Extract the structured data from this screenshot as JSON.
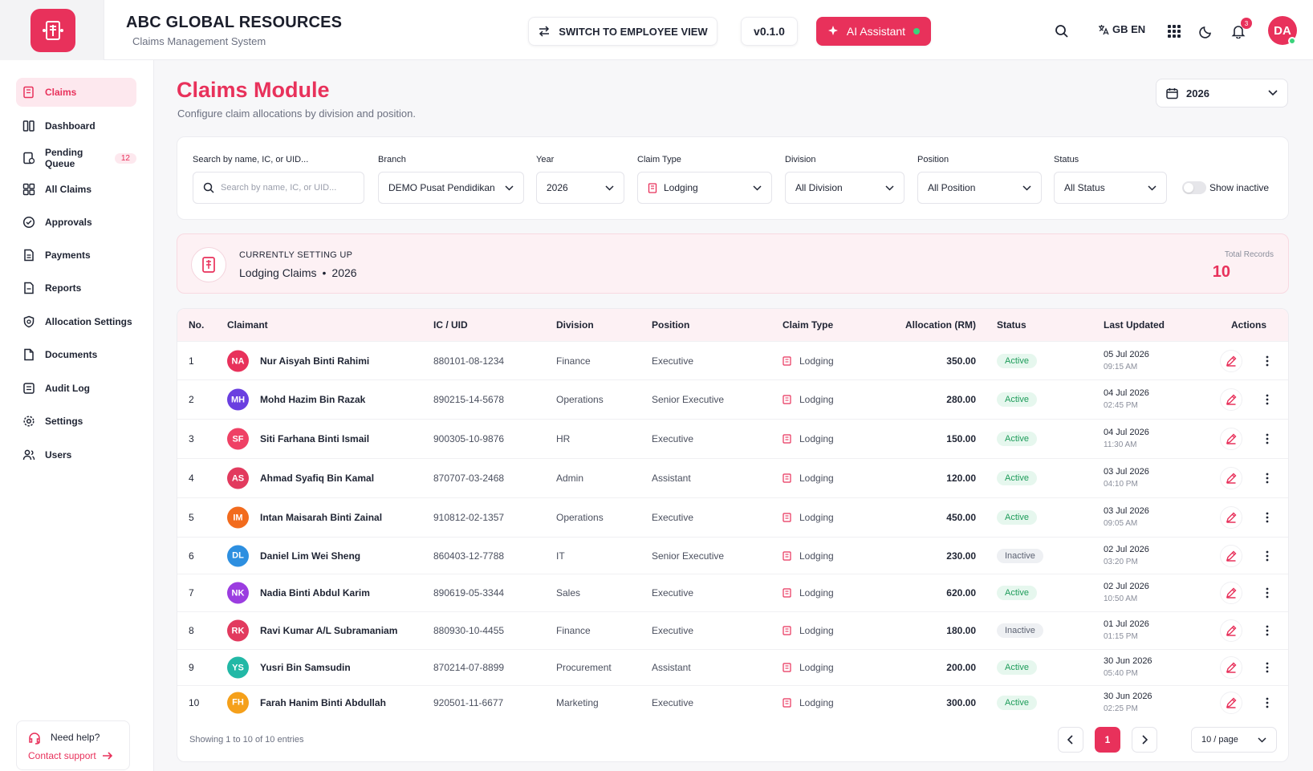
{
  "header": {
    "brand_title": "ABC GLOBAL RESOURCES",
    "brand_subtitle": "Claims Management System",
    "switch_label": "SWITCH TO EMPLOYEE VIEW",
    "version": "v0.1.0",
    "ai_label": "AI Assistant",
    "language": "GB EN",
    "notification_count": "3",
    "user_initials": "DA",
    "colors": {
      "accent": "#e8315b",
      "online": "#3ad37b"
    }
  },
  "sidebar": {
    "items": [
      {
        "label": "Claims",
        "icon": "claims-icon",
        "active": true
      },
      {
        "label": "Dashboard",
        "icon": "dashboard-icon"
      },
      {
        "label": "Pending Queue",
        "icon": "pending-icon",
        "badge": "12"
      },
      {
        "label": "All Claims",
        "icon": "all-claims-icon"
      },
      {
        "label": "Approvals",
        "icon": "check-circle-icon"
      },
      {
        "label": "Payments",
        "icon": "document-icon"
      },
      {
        "label": "Reports",
        "icon": "report-icon"
      },
      {
        "label": "Allocation Settings",
        "icon": "gear-shield-icon"
      },
      {
        "label": "Documents",
        "icon": "file-icon"
      },
      {
        "label": "Audit Log",
        "icon": "audit-icon"
      },
      {
        "label": "Settings",
        "icon": "gear-icon"
      },
      {
        "label": "Users",
        "icon": "users-icon"
      }
    ],
    "help_title": "Need help?",
    "help_link": "Contact support"
  },
  "page": {
    "title": "Claims Module",
    "subtitle": "Configure claim allocations by division and position.",
    "year": "2026"
  },
  "filters": {
    "search_label": "Search by name, IC, or UID...",
    "search_placeholder": "Search by name, IC, or UID...",
    "branch_label": "Branch",
    "branch_value": "DEMO Pusat Pendidikan",
    "year_label": "Year",
    "year_value": "2026",
    "claim_type_label": "Claim Type",
    "claim_type_value": "Lodging",
    "division_label": "Division",
    "division_value": "All Division",
    "position_label": "Position",
    "position_value": "All Position",
    "status_label": "Status",
    "status_value": "All Status",
    "show_inactive_label": "Show inactive",
    "show_inactive": false
  },
  "setup": {
    "kicker": "CURRENTLY SETTING UP",
    "claim_name": "Lodging Claims",
    "separator": "•",
    "year": "2026",
    "total_label": "Total Records",
    "total_value": "10"
  },
  "table": {
    "headers": [
      "No.",
      "Claimant",
      "IC / UID",
      "Division",
      "Position",
      "Claim Type",
      "Allocation (RM)",
      "Status",
      "Last Updated",
      "Actions"
    ],
    "rows": [
      {
        "no": "1",
        "initials": "NA",
        "color": "#e8315b",
        "name": "Nur Aisyah Binti Rahimi",
        "ic": "880101-08-1234",
        "division": "Finance",
        "position": "Executive",
        "type": "Lodging",
        "alloc": "350.00",
        "status": "Active",
        "date": "05 Jul 2026",
        "time": "09:15 AM"
      },
      {
        "no": "2",
        "initials": "MH",
        "color": "#6a3fe0",
        "name": "Mohd Hazim Bin Razak",
        "ic": "890215-14-5678",
        "division": "Operations",
        "position": "Senior Executive",
        "type": "Lodging",
        "alloc": "280.00",
        "status": "Active",
        "date": "04 Jul 2026",
        "time": "02:45 PM"
      },
      {
        "no": "3",
        "initials": "SF",
        "color": "#ef4165",
        "name": "Siti Farhana Binti Ismail",
        "ic": "900305-10-9876",
        "division": "HR",
        "position": "Executive",
        "type": "Lodging",
        "alloc": "150.00",
        "status": "Active",
        "date": "04 Jul 2026",
        "time": "11:30 AM"
      },
      {
        "no": "4",
        "initials": "AS",
        "color": "#e23a5e",
        "name": "Ahmad Syafiq Bin Kamal",
        "ic": "870707-03-2468",
        "division": "Admin",
        "position": "Assistant",
        "type": "Lodging",
        "alloc": "120.00",
        "status": "Active",
        "date": "03 Jul 2026",
        "time": "04:10 PM"
      },
      {
        "no": "5",
        "initials": "IM",
        "color": "#f26b1d",
        "name": "Intan Maisarah Binti Zainal",
        "ic": "910812-02-1357",
        "division": "Operations",
        "position": "Executive",
        "type": "Lodging",
        "alloc": "450.00",
        "status": "Active",
        "date": "03 Jul 2026",
        "time": "09:05 AM"
      },
      {
        "no": "6",
        "initials": "DL",
        "color": "#2d8fe0",
        "name": "Daniel Lim Wei Sheng",
        "ic": "860403-12-7788",
        "division": "IT",
        "position": "Senior Executive",
        "type": "Lodging",
        "alloc": "230.00",
        "status": "Inactive",
        "date": "02 Jul 2026",
        "time": "03:20 PM"
      },
      {
        "no": "7",
        "initials": "NK",
        "color": "#9b3de0",
        "name": "Nadia Binti Abdul Karim",
        "ic": "890619-05-3344",
        "division": "Sales",
        "position": "Executive",
        "type": "Lodging",
        "alloc": "620.00",
        "status": "Active",
        "date": "02 Jul 2026",
        "time": "10:50 AM"
      },
      {
        "no": "8",
        "initials": "RK",
        "color": "#e23a5e",
        "name": "Ravi Kumar A/L Subramaniam",
        "ic": "880930-10-4455",
        "division": "Finance",
        "position": "Executive",
        "type": "Lodging",
        "alloc": "180.00",
        "status": "Inactive",
        "date": "01 Jul 2026",
        "time": "01:15 PM"
      },
      {
        "no": "9",
        "initials": "YS",
        "color": "#22b8a6",
        "name": "Yusri Bin Samsudin",
        "ic": "870214-07-8899",
        "division": "Procurement",
        "position": "Assistant",
        "type": "Lodging",
        "alloc": "200.00",
        "status": "Active",
        "date": "30 Jun 2026",
        "time": "05:40 PM"
      },
      {
        "no": "10",
        "initials": "FH",
        "color": "#f5a01a",
        "name": "Farah Hanim Binti Abdullah",
        "ic": "920501-11-6677",
        "division": "Marketing",
        "position": "Executive",
        "type": "Lodging",
        "alloc": "300.00",
        "status": "Active",
        "date": "30 Jun 2026",
        "time": "02:25 PM"
      }
    ],
    "footer_text": "Showing 1 to 10 of 10 entries",
    "current_page": "1",
    "per_page": "10 / page"
  }
}
